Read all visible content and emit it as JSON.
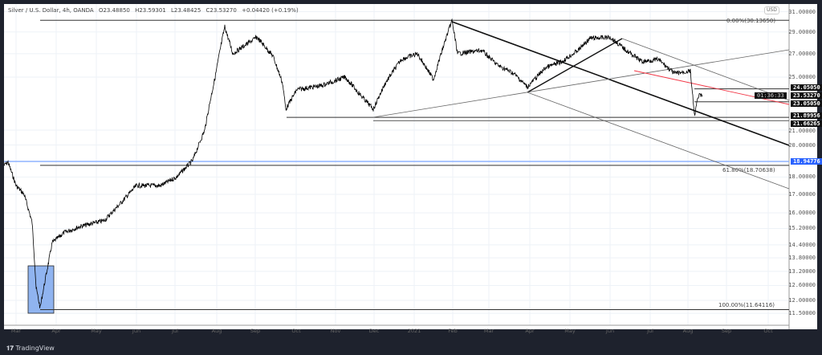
{
  "header": {
    "symbol": "Silver / U.S. Dollar, 4h, OANDA",
    "open": "O23.48850",
    "high": "H23.59301",
    "low": "L23.48425",
    "close": "C23.53270",
    "change": "+0.04420 (+0.19%)"
  },
  "currency": "USD",
  "price_axis": {
    "scale": "log",
    "ticks": [
      "31.00000",
      "29.00000",
      "27.00000",
      "25.00000",
      "21.00000",
      "20.00000",
      "18.00000",
      "17.00000",
      "16.00000",
      "15.20000",
      "14.40000",
      "13.80000",
      "13.20000",
      "12.60000",
      "12.00000",
      "11.50000"
    ],
    "badges": {
      "level_top": "24.05050",
      "last_price": "23.53270",
      "countdown": "01:36:33",
      "level_mid": "23.05050",
      "support_1": "21.89956",
      "support_2": "21.66265",
      "blue_level": "18.94776"
    }
  },
  "time_axis": [
    "Mar",
    "Apr",
    "May",
    "Jun",
    "Jul",
    "Aug",
    "Sep",
    "Oct",
    "Nov",
    "Dec",
    "2021",
    "Feb",
    "Mar",
    "Apr",
    "May",
    "Jun",
    "Jul",
    "Aug",
    "Sep",
    "Oct"
  ],
  "fib": {
    "f0": "0.00%(30.13650)",
    "f618": "61.80%(18.70638)",
    "f100": "100.00%(11.64116)"
  },
  "colors": {
    "price": "#000000",
    "accent_blue": "#2962ff",
    "trend_red": "#f23645",
    "box_fill": "#90b4f0"
  },
  "footer": {
    "logo": "TradingView"
  }
}
